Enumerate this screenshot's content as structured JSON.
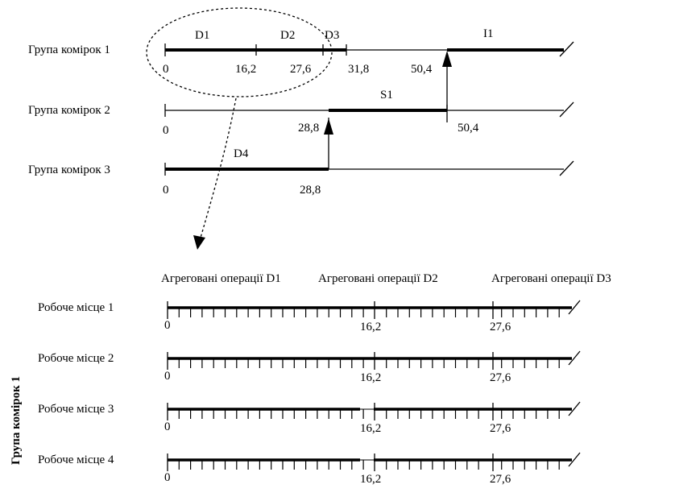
{
  "top": {
    "rows": [
      {
        "label": "Група комірок 1",
        "ticks": [
          "0",
          "16,2",
          "27,6",
          "31,8",
          "50,4"
        ],
        "ops": [
          "D1",
          "D2",
          "D3",
          "I1"
        ]
      },
      {
        "label": "Група комірок 2",
        "ticks": [
          "0",
          "28,8",
          "50,4"
        ],
        "ops": [
          "S1"
        ]
      },
      {
        "label": "Група комірок 3",
        "ticks": [
          "0",
          "28,8"
        ],
        "ops": [
          "D4"
        ]
      }
    ]
  },
  "bottom": {
    "group_label": "Група комірок 1",
    "headers": [
      "Агреговані операції D1",
      "Агреговані операції  D2",
      "Агреговані операції  D3"
    ],
    "rows": [
      {
        "label": "Робоче місце 1",
        "ticks": [
          "0",
          "16,2",
          "27,6"
        ]
      },
      {
        "label": "Робоче місце 2",
        "ticks": [
          "0",
          "16,2",
          "27,6"
        ]
      },
      {
        "label": "Робоче місце 3",
        "ticks": [
          "0",
          "16,2",
          "27,6"
        ]
      },
      {
        "label": "Робоче місце 4",
        "ticks": [
          "0",
          "16,2",
          "27,6"
        ]
      }
    ]
  }
}
